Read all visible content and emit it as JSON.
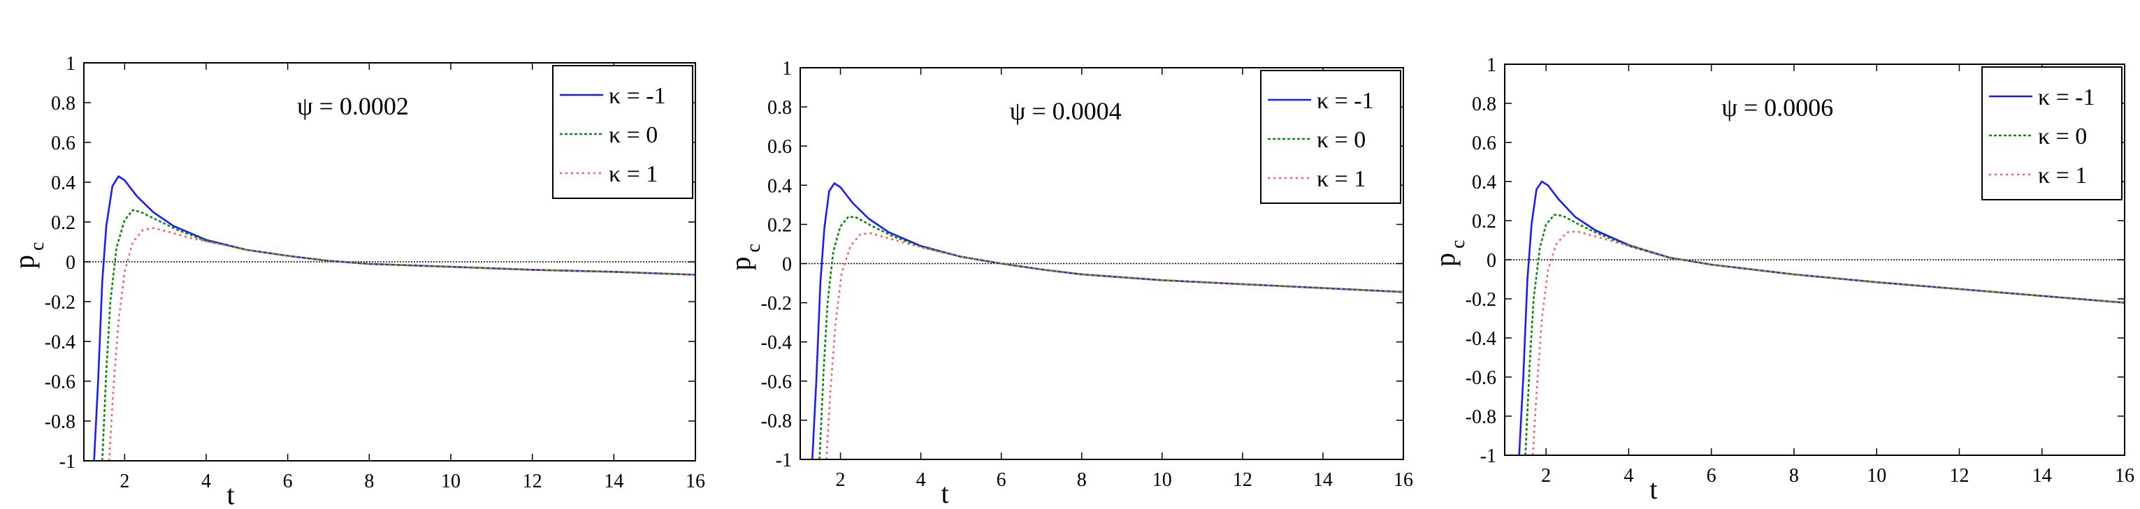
{
  "colors": {
    "blue": "#1a1aff",
    "green": "#0a8a0a",
    "red": "#ff5a5a",
    "axis": "#000000"
  },
  "chart_data": [
    {
      "type": "line",
      "annotation": "ψ = 0.0002",
      "xlabel": "t",
      "ylabel": "p",
      "ylabel_sub": "c",
      "xlim": [
        1,
        16
      ],
      "ylim": [
        -1,
        1
      ],
      "xticks": [
        2,
        4,
        6,
        8,
        10,
        12,
        14,
        16
      ],
      "yticks": [
        -1,
        -0.8,
        -0.6,
        -0.4,
        -0.2,
        0,
        0.2,
        0.4,
        0.6,
        0.8,
        1
      ],
      "hline": 0,
      "legend_position": "top-right",
      "series": [
        {
          "name": "κ = -1",
          "color": "#1a1aff",
          "dash": "solid",
          "points": [
            [
              1.25,
              -1
            ],
            [
              1.35,
              -0.6
            ],
            [
              1.45,
              -0.1
            ],
            [
              1.55,
              0.18
            ],
            [
              1.7,
              0.38
            ],
            [
              1.85,
              0.43
            ],
            [
              2,
              0.41
            ],
            [
              2.3,
              0.33
            ],
            [
              2.7,
              0.25
            ],
            [
              3.2,
              0.18
            ],
            [
              4,
              0.11
            ],
            [
              5,
              0.06
            ],
            [
              6,
              0.03
            ],
            [
              7,
              0.005
            ],
            [
              8,
              -0.01
            ],
            [
              10,
              -0.025
            ],
            [
              12,
              -0.04
            ],
            [
              14,
              -0.05
            ],
            [
              16,
              -0.065
            ]
          ]
        },
        {
          "name": "κ = 0",
          "color": "#0a8a0a",
          "dash": "dot",
          "points": [
            [
              1.45,
              -1
            ],
            [
              1.55,
              -0.55
            ],
            [
              1.65,
              -0.2
            ],
            [
              1.8,
              0.07
            ],
            [
              2,
              0.21
            ],
            [
              2.2,
              0.26
            ],
            [
              2.4,
              0.25
            ],
            [
              2.8,
              0.21
            ],
            [
              3.3,
              0.16
            ],
            [
              4,
              0.105
            ],
            [
              5,
              0.06
            ],
            [
              6,
              0.03
            ],
            [
              7,
              0.005
            ],
            [
              8,
              -0.01
            ],
            [
              10,
              -0.025
            ],
            [
              12,
              -0.04
            ],
            [
              14,
              -0.05
            ],
            [
              16,
              -0.065
            ]
          ]
        },
        {
          "name": "κ = 1",
          "color": "#ff5a5a",
          "dash": "dashdot",
          "points": [
            [
              1.62,
              -1
            ],
            [
              1.72,
              -0.65
            ],
            [
              1.85,
              -0.3
            ],
            [
              2,
              -0.05
            ],
            [
              2.2,
              0.1
            ],
            [
              2.45,
              0.16
            ],
            [
              2.7,
              0.17
            ],
            [
              3.1,
              0.15
            ],
            [
              3.6,
              0.12
            ],
            [
              4.3,
              0.09
            ],
            [
              5,
              0.06
            ],
            [
              6,
              0.03
            ],
            [
              7,
              0.005
            ],
            [
              8,
              -0.01
            ],
            [
              10,
              -0.025
            ],
            [
              12,
              -0.04
            ],
            [
              14,
              -0.05
            ],
            [
              16,
              -0.065
            ]
          ]
        }
      ]
    },
    {
      "type": "line",
      "annotation": "ψ = 0.0004",
      "xlabel": "t",
      "ylabel": "p",
      "ylabel_sub": "c",
      "xlim": [
        1,
        16
      ],
      "ylim": [
        -1,
        1
      ],
      "xticks": [
        2,
        4,
        6,
        8,
        10,
        12,
        14,
        16
      ],
      "yticks": [
        -1,
        -0.8,
        -0.6,
        -0.4,
        -0.2,
        0,
        0.2,
        0.4,
        0.6,
        0.8,
        1
      ],
      "hline": 0,
      "legend_position": "top-right",
      "series": [
        {
          "name": "κ = -1",
          "color": "#1a1aff",
          "dash": "solid",
          "points": [
            [
              1.3,
              -1
            ],
            [
              1.4,
              -0.6
            ],
            [
              1.5,
              -0.1
            ],
            [
              1.6,
              0.18
            ],
            [
              1.72,
              0.37
            ],
            [
              1.85,
              0.41
            ],
            [
              2,
              0.39
            ],
            [
              2.3,
              0.31
            ],
            [
              2.7,
              0.23
            ],
            [
              3.2,
              0.16
            ],
            [
              4,
              0.09
            ],
            [
              5,
              0.035
            ],
            [
              6,
              0
            ],
            [
              7,
              -0.03
            ],
            [
              8,
              -0.055
            ],
            [
              10,
              -0.085
            ],
            [
              12,
              -0.105
            ],
            [
              14,
              -0.125
            ],
            [
              16,
              -0.145
            ]
          ]
        },
        {
          "name": "κ = 0",
          "color": "#0a8a0a",
          "dash": "dot",
          "points": [
            [
              1.48,
              -1
            ],
            [
              1.58,
              -0.55
            ],
            [
              1.68,
              -0.2
            ],
            [
              1.82,
              0.06
            ],
            [
              2,
              0.19
            ],
            [
              2.2,
              0.24
            ],
            [
              2.4,
              0.235
            ],
            [
              2.8,
              0.19
            ],
            [
              3.3,
              0.14
            ],
            [
              4,
              0.085
            ],
            [
              5,
              0.035
            ],
            [
              6,
              0
            ],
            [
              7,
              -0.03
            ],
            [
              8,
              -0.055
            ],
            [
              10,
              -0.085
            ],
            [
              12,
              -0.105
            ],
            [
              14,
              -0.125
            ],
            [
              16,
              -0.145
            ]
          ]
        },
        {
          "name": "κ = 1",
          "color": "#ff5a5a",
          "dash": "dashdot",
          "points": [
            [
              1.65,
              -1
            ],
            [
              1.75,
              -0.65
            ],
            [
              1.88,
              -0.3
            ],
            [
              2.03,
              -0.05
            ],
            [
              2.25,
              0.09
            ],
            [
              2.5,
              0.15
            ],
            [
              2.75,
              0.155
            ],
            [
              3.1,
              0.135
            ],
            [
              3.6,
              0.105
            ],
            [
              4.3,
              0.07
            ],
            [
              5,
              0.035
            ],
            [
              6,
              0
            ],
            [
              7,
              -0.03
            ],
            [
              8,
              -0.055
            ],
            [
              10,
              -0.085
            ],
            [
              12,
              -0.105
            ],
            [
              14,
              -0.125
            ],
            [
              16,
              -0.145
            ]
          ]
        }
      ]
    },
    {
      "type": "line",
      "annotation": "ψ = 0.0006",
      "xlabel": "t",
      "ylabel": "p",
      "ylabel_sub": "c",
      "xlim": [
        1,
        16
      ],
      "ylim": [
        -1,
        1
      ],
      "xticks": [
        2,
        4,
        6,
        8,
        10,
        12,
        14,
        16
      ],
      "yticks": [
        -1,
        -0.8,
        -0.6,
        -0.4,
        -0.2,
        0,
        0.2,
        0.4,
        0.6,
        0.8,
        1
      ],
      "hline": 0,
      "legend_position": "top-right",
      "series": [
        {
          "name": "κ = -1",
          "color": "#1a1aff",
          "dash": "solid",
          "points": [
            [
              1.35,
              -1
            ],
            [
              1.45,
              -0.6
            ],
            [
              1.55,
              -0.1
            ],
            [
              1.65,
              0.18
            ],
            [
              1.77,
              0.36
            ],
            [
              1.9,
              0.4
            ],
            [
              2.05,
              0.38
            ],
            [
              2.3,
              0.31
            ],
            [
              2.7,
              0.22
            ],
            [
              3.2,
              0.15
            ],
            [
              4,
              0.075
            ],
            [
              5,
              0.01
            ],
            [
              5.3,
              0
            ],
            [
              6,
              -0.025
            ],
            [
              8,
              -0.075
            ],
            [
              10,
              -0.115
            ],
            [
              12,
              -0.15
            ],
            [
              14,
              -0.185
            ],
            [
              16,
              -0.22
            ]
          ]
        },
        {
          "name": "κ = 0",
          "color": "#0a8a0a",
          "dash": "dot",
          "points": [
            [
              1.5,
              -1
            ],
            [
              1.6,
              -0.55
            ],
            [
              1.7,
              -0.2
            ],
            [
              1.85,
              0.06
            ],
            [
              2,
              0.18
            ],
            [
              2.2,
              0.23
            ],
            [
              2.4,
              0.225
            ],
            [
              2.8,
              0.18
            ],
            [
              3.3,
              0.13
            ],
            [
              4,
              0.07
            ],
            [
              5,
              0.01
            ],
            [
              5.3,
              0
            ],
            [
              6,
              -0.025
            ],
            [
              8,
              -0.075
            ],
            [
              10,
              -0.115
            ],
            [
              12,
              -0.15
            ],
            [
              14,
              -0.185
            ],
            [
              16,
              -0.22
            ]
          ]
        },
        {
          "name": "κ = 1",
          "color": "#ff5a5a",
          "dash": "dashdot",
          "points": [
            [
              1.68,
              -1
            ],
            [
              1.78,
              -0.65
            ],
            [
              1.9,
              -0.3
            ],
            [
              2.05,
              -0.05
            ],
            [
              2.25,
              0.08
            ],
            [
              2.5,
              0.14
            ],
            [
              2.75,
              0.145
            ],
            [
              3.1,
              0.125
            ],
            [
              3.6,
              0.095
            ],
            [
              4.3,
              0.055
            ],
            [
              5,
              0.012
            ],
            [
              5.3,
              0
            ],
            [
              6,
              -0.025
            ],
            [
              8,
              -0.075
            ],
            [
              10,
              -0.115
            ],
            [
              12,
              -0.15
            ],
            [
              14,
              -0.185
            ],
            [
              16,
              -0.22
            ]
          ]
        }
      ]
    }
  ]
}
